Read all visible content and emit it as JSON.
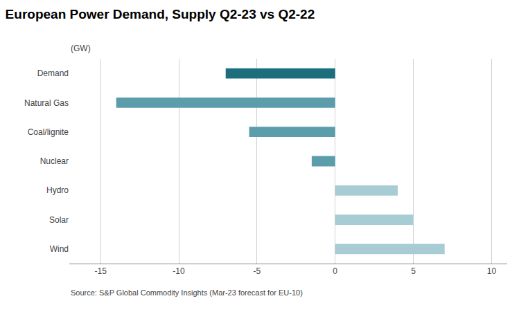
{
  "chart_data": {
    "type": "bar",
    "orientation": "horizontal",
    "title": "European Power Demand, Supply Q2-23 vs Q2-22",
    "subtitle": "(GW)",
    "annotations": [
      "Source: S&P Global Commodity Insights (Mar-23 forecast for EU-10)"
    ],
    "categories": [
      "Demand",
      "Natural Gas",
      "Coal/lignite",
      "Nuclear",
      "Hydro",
      "Solar",
      "Wind"
    ],
    "values": [
      -7,
      -14,
      -5.5,
      -1.5,
      4,
      5,
      7
    ],
    "colors": [
      "#1c6e7d",
      "#5b9dab",
      "#5b9dab",
      "#5b9dab",
      "#a8ccd3",
      "#a8ccd3",
      "#a8ccd3"
    ],
    "xlim": [
      -17,
      11
    ],
    "xticks": [
      -15,
      -10,
      -5,
      0,
      5,
      10
    ],
    "grid": true
  }
}
